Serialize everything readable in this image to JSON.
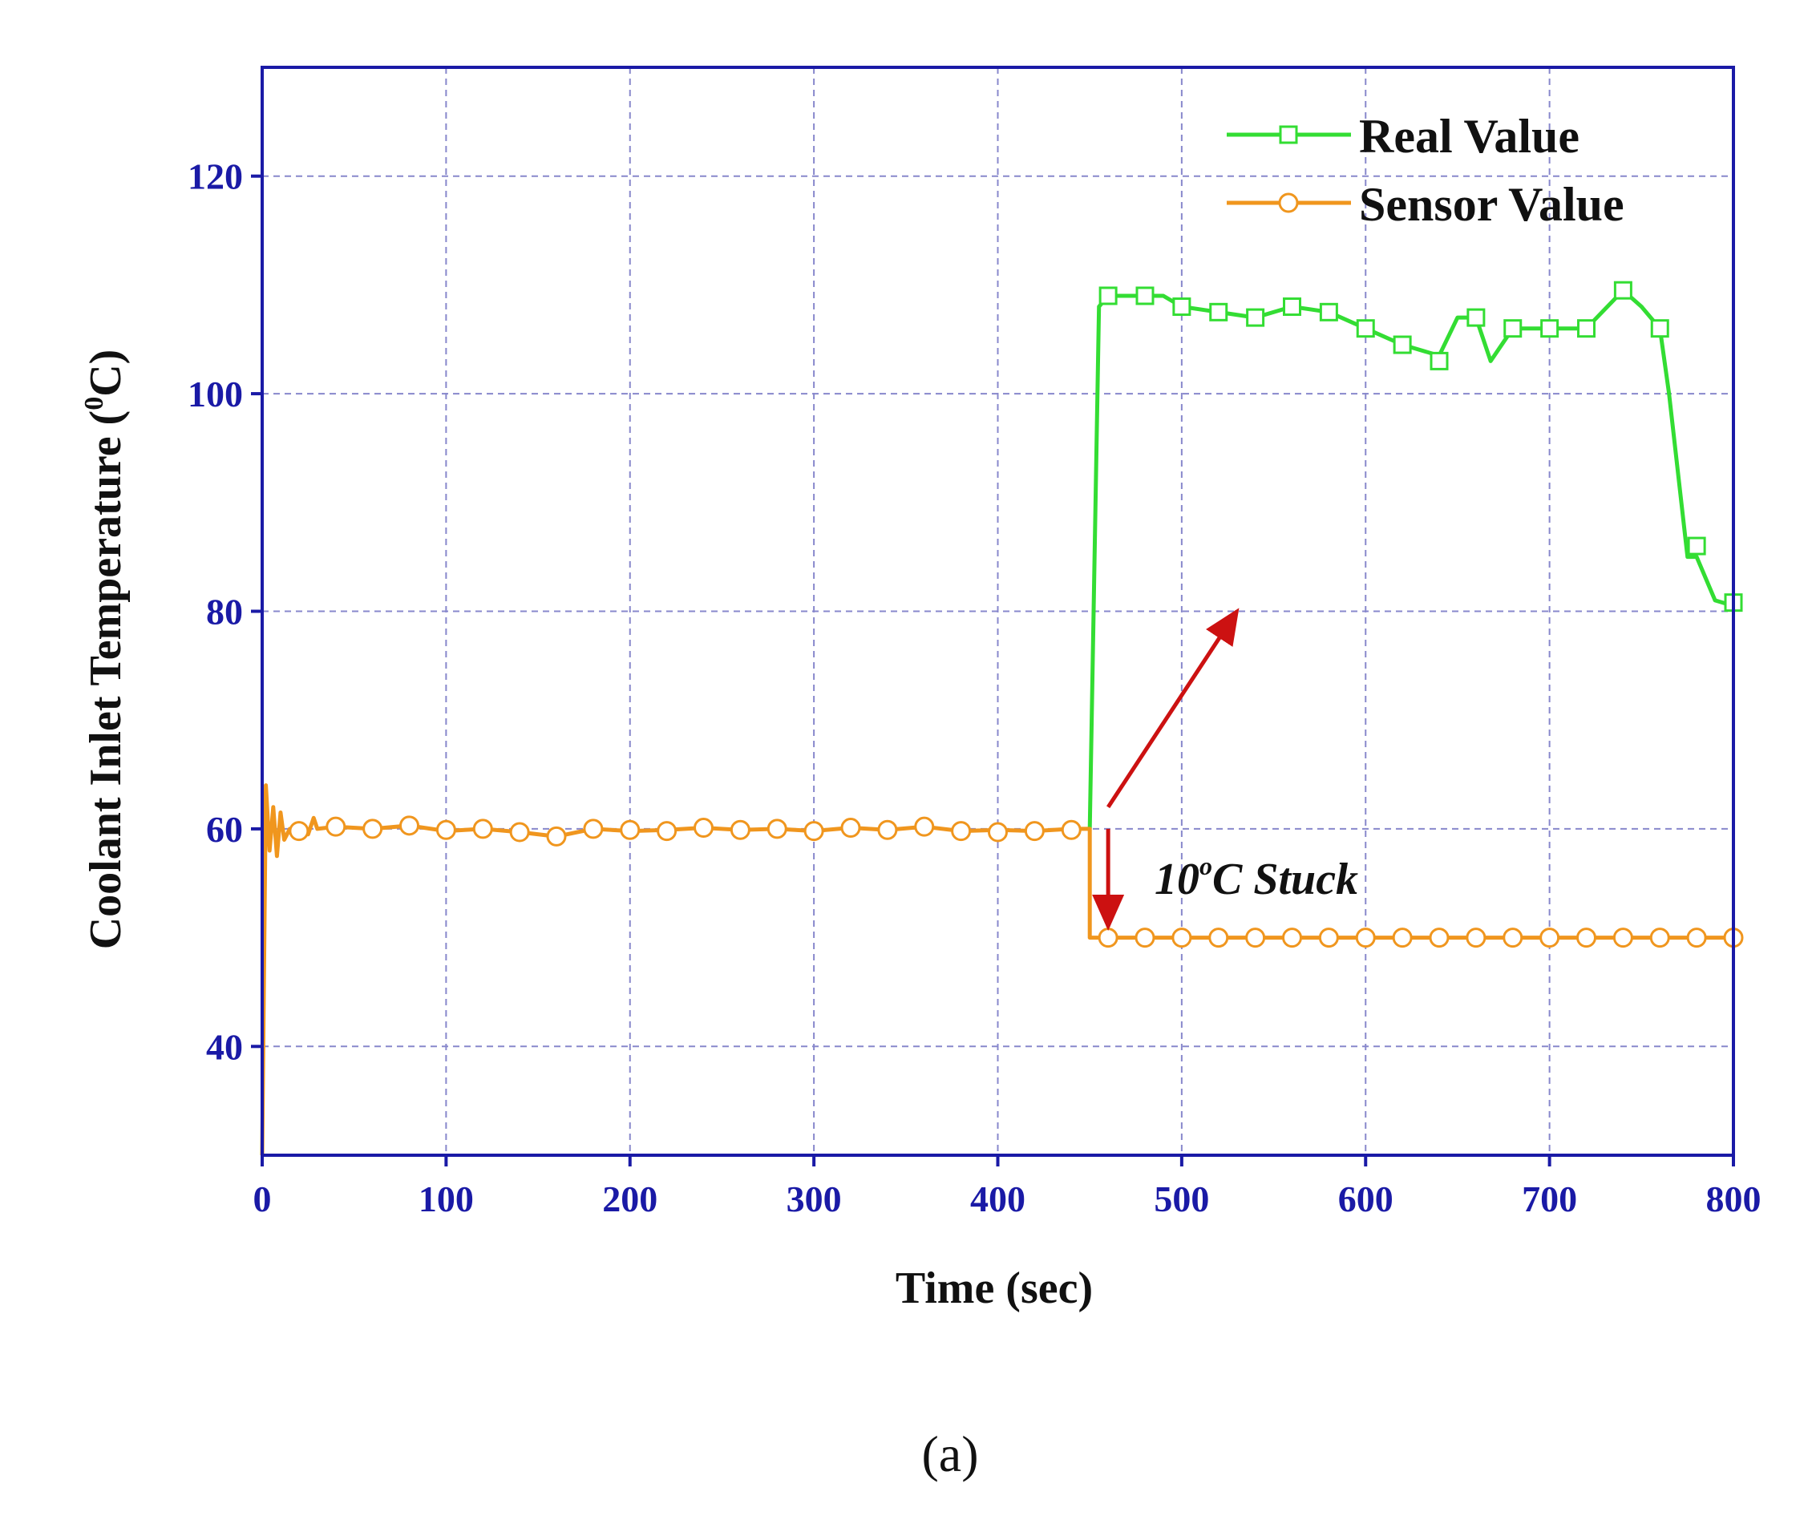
{
  "chart_data": {
    "type": "line",
    "xlabel": "Time (sec)",
    "ylabel_main": "Coolant Inlet Temperature (",
    "ylabel_sup": "0",
    "ylabel_end": "C)",
    "xlim": [
      0,
      800
    ],
    "ylim": [
      30,
      130
    ],
    "xticks": [
      0,
      100,
      200,
      300,
      400,
      500,
      600,
      700,
      800
    ],
    "yticks": [
      40,
      60,
      80,
      100,
      120
    ],
    "grid": true,
    "legend_position": "top-right",
    "series": [
      {
        "name": "Real Value",
        "color": "#33dd33",
        "marker": "square",
        "x": [
          450,
          455,
          460,
          470,
          480,
          490,
          500,
          520,
          540,
          560,
          580,
          600,
          620,
          640,
          650,
          660,
          668,
          680,
          700,
          720,
          740,
          750,
          760,
          765,
          775,
          780,
          790,
          800
        ],
        "y": [
          60,
          108,
          109,
          109,
          109,
          109,
          108,
          107.5,
          107,
          108,
          107.5,
          106,
          104.5,
          103.5,
          107,
          107,
          103,
          106,
          106,
          106,
          109.5,
          108,
          106,
          100,
          85,
          85,
          81,
          80.5
        ]
      },
      {
        "name": "Sensor Value",
        "color": "#f0961e",
        "marker": "circle",
        "x": [
          0,
          2,
          4,
          6,
          8,
          10,
          12,
          15,
          20,
          25,
          28,
          30,
          40,
          60,
          80,
          100,
          120,
          140,
          160,
          180,
          200,
          220,
          240,
          260,
          280,
          300,
          320,
          340,
          360,
          380,
          400,
          420,
          440,
          450,
          450,
          460,
          480,
          500,
          520,
          540,
          560,
          580,
          600,
          620,
          640,
          660,
          680,
          700,
          720,
          740,
          760,
          780,
          800
        ],
        "y": [
          30,
          64,
          58,
          62,
          57.5,
          61.5,
          59,
          60,
          60,
          59.5,
          61,
          60,
          60.2,
          60,
          60.3,
          59.8,
          60,
          59.7,
          59.3,
          60,
          59.8,
          59.9,
          60.1,
          59.9,
          60,
          59.8,
          60.1,
          59.9,
          60.2,
          59.8,
          59.9,
          59.8,
          60,
          60,
          50,
          50,
          50,
          50,
          50,
          50,
          50,
          50,
          50,
          50,
          50,
          50,
          50,
          50,
          50,
          50,
          50,
          50,
          50
        ]
      }
    ],
    "real_markers_x": [
      460,
      480,
      500,
      520,
      540,
      560,
      580,
      600,
      620,
      640,
      660,
      680,
      700,
      720,
      740,
      760,
      780,
      800
    ],
    "real_markers_y": [
      109,
      109,
      108,
      107.5,
      107,
      108,
      107.5,
      106,
      104.5,
      103,
      107,
      106,
      106,
      106,
      109.5,
      106,
      86,
      80.8
    ],
    "sensor_markers_x": [
      20,
      40,
      60,
      80,
      100,
      120,
      140,
      160,
      180,
      200,
      220,
      240,
      260,
      280,
      300,
      320,
      340,
      360,
      380,
      400,
      420,
      440,
      460,
      480,
      500,
      520,
      540,
      560,
      580,
      600,
      620,
      640,
      660,
      680,
      700,
      720,
      740,
      760,
      780,
      800
    ],
    "sensor_markers_y": [
      59.8,
      60.2,
      60,
      60.3,
      59.9,
      60,
      59.7,
      59.3,
      60,
      59.9,
      59.8,
      60.1,
      59.9,
      60,
      59.8,
      60.1,
      59.9,
      60.2,
      59.8,
      59.7,
      59.8,
      59.9,
      50,
      50,
      50,
      50,
      50,
      50,
      50,
      50,
      50,
      50,
      50,
      50,
      50,
      50,
      50,
      50,
      50,
      50
    ],
    "annotation": {
      "text_pre": "10",
      "text_sup": "o",
      "text_post": "C Stuck",
      "arrow_color": "#cc1111",
      "arrow_up_from": [
        460,
        62
      ],
      "arrow_up_to": [
        530,
        80
      ],
      "arrow_down_from": [
        460,
        60
      ],
      "arrow_down_to": [
        460,
        51
      ]
    },
    "colors": {
      "axis": "#1a1aa6",
      "grid": "#8888cc"
    }
  },
  "panel_label": "(a)"
}
